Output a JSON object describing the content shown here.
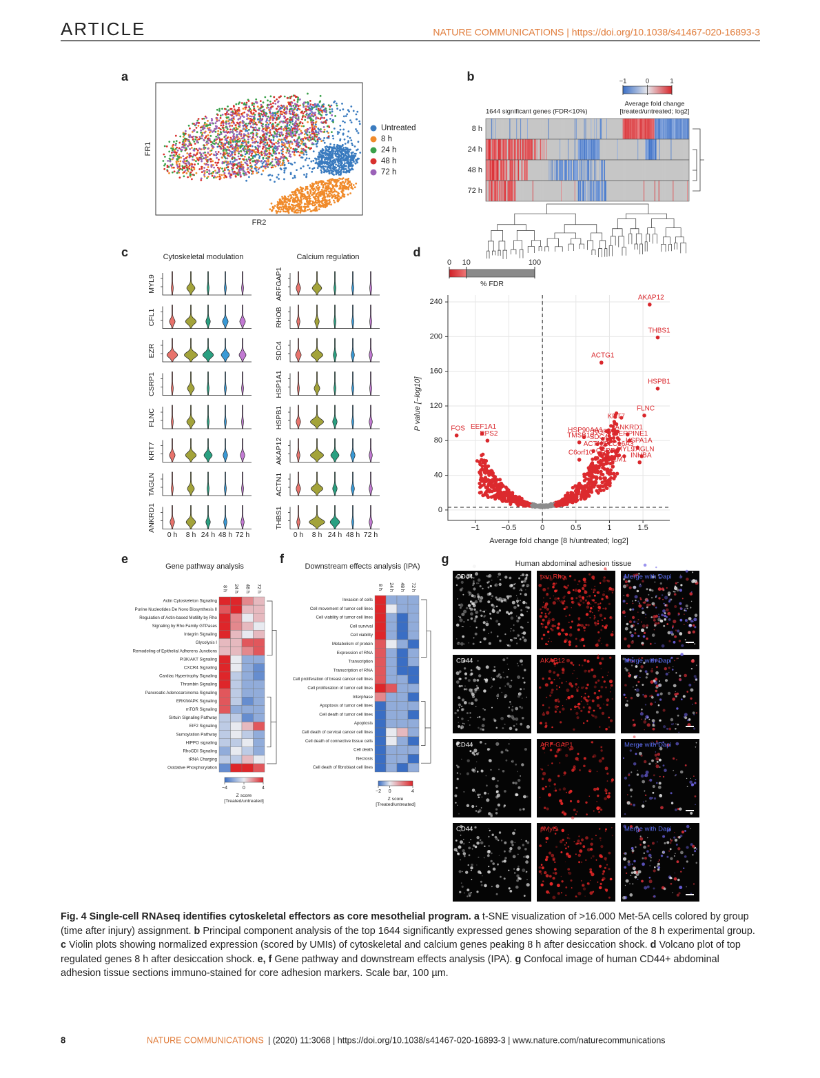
{
  "header": {
    "left": "ARTICLE",
    "right": "NATURE COMMUNICATIONS | https://doi.org/10.1038/s41467-020-16893-3"
  },
  "panels": {
    "a": {
      "label": "a",
      "x_label": "FR2",
      "y_label": "FR1",
      "legend": [
        {
          "name": "Untreated",
          "color": "#3a7bbf"
        },
        {
          "name": "8 h",
          "color": "#f08a2a"
        },
        {
          "name": "24 h",
          "color": "#3aa04a"
        },
        {
          "name": "48 h",
          "color": "#d8312e"
        },
        {
          "name": "72 h",
          "color": "#9b62b8"
        }
      ]
    },
    "b": {
      "label": "b",
      "colorbar_ticks": [
        {
          "value": -1,
          "label": "−1"
        },
        0,
        1
      ],
      "colorbar_title": [
        "Average fold change",
        "[treated/untreated; log2]"
      ],
      "note": "1644 significant genes (FDR<10%)",
      "rows": [
        "8 h",
        "24 h",
        "48 h",
        "72 h"
      ]
    },
    "c": {
      "label": "c",
      "left_title": "Cytoskeletal modulation",
      "right_title": "Calcium regulation",
      "left_genes": [
        "MYL9",
        "CFL1",
        "EZR",
        "CSRP1",
        "FLNC",
        "KRT7",
        "TAGLN",
        "ANKRD1"
      ],
      "right_genes": [
        "ARFGAP1",
        "RHOB",
        "SDC4",
        "HSP1A1",
        "HSPB1",
        "AKAP12",
        "ACTN1",
        "THBS1"
      ],
      "x_labels": [
        "0 h",
        "8 h",
        "24 h",
        "48 h",
        "72 h"
      ]
    },
    "d": {
      "label": "d",
      "fdr_ticks": [
        0,
        10,
        100
      ],
      "fdr_label": "% FDR",
      "x_label": "Average fold change [8 h/untreated; log2]",
      "y_label": "P value [−log10]",
      "xlim": [
        -1.41,
        1.9
      ],
      "ylim": [
        -12,
        248
      ],
      "xticks": [
        {
          "value": -1,
          "label": "−1"
        },
        {
          "value": -0.5,
          "label": "−0.5"
        },
        0,
        0.5,
        1,
        1.5
      ],
      "yticks": [
        0,
        40,
        80,
        120,
        160,
        200,
        240
      ],
      "genes": [
        {
          "name": "AKAP12",
          "x": 1.6,
          "y": 237
        },
        {
          "name": "THBS1",
          "x": 1.72,
          "y": 199
        },
        {
          "name": "ACTG1",
          "x": 0.88,
          "y": 170
        },
        {
          "name": "HSPB1",
          "x": 1.72,
          "y": 140
        },
        {
          "name": "FLNC",
          "x": 1.52,
          "y": 109
        },
        {
          "name": "KRT7",
          "x": 1.08,
          "y": 100
        },
        {
          "name": "FOS",
          "x": -1.28,
          "y": 86
        },
        {
          "name": "EEF1A1",
          "x": -0.9,
          "y": 88
        },
        {
          "name": "RPS2",
          "x": -0.82,
          "y": 80
        },
        {
          "name": "HSP90AA1",
          "x": 0.62,
          "y": 84
        },
        {
          "name": "NOP56",
          "x": 0.9,
          "y": 82
        },
        {
          "name": "TMSB10",
          "x": 0.55,
          "y": 78
        },
        {
          "name": "SDC4",
          "x": 0.82,
          "y": 76
        },
        {
          "name": "SERPINE1",
          "x": 1.3,
          "y": 80
        },
        {
          "name": "ANKRD1",
          "x": 1.27,
          "y": 87
        },
        {
          "name": "HSPA1A",
          "x": 1.42,
          "y": 72
        },
        {
          "name": "ACTN1",
          "x": 0.76,
          "y": 68
        },
        {
          "name": "SLC16A3",
          "x": 1.12,
          "y": 68
        },
        {
          "name": "CSRP1",
          "x": 0.95,
          "y": 60
        },
        {
          "name": "MYL9",
          "x": 1.22,
          "y": 62
        },
        {
          "name": "TAGLN",
          "x": 1.48,
          "y": 62
        },
        {
          "name": "C6orf10",
          "x": 0.55,
          "y": 58
        },
        {
          "name": "GREM1",
          "x": 1.05,
          "y": 50
        },
        {
          "name": "INHBA",
          "x": 1.45,
          "y": 55
        }
      ]
    },
    "e": {
      "label": "e",
      "title": "Gene pathway analysis",
      "columns": [
        "8 h",
        "24 h",
        "48 h",
        "72 h"
      ],
      "rows": [
        "Actin Cytoskeleton Signaling",
        "Purine Nucleotides De Novo Biosynthesis II",
        "Regulation of Actin-based Motility by Rho",
        "Signaling by Rho Family GTPases",
        "Integrin Signaling",
        "Glycolysis I",
        "Remodeling of Epithelial Adherens Junctions",
        "PI3K/AKT Signaling",
        "CXCR4 Signaling",
        "Cardiac Hypertrophy Signaling",
        "Thrombin Signaling",
        "Pancreatic Adenocarcinoma Signaling",
        "ERK/MAPK Signaling",
        "mTOR Signaling",
        "Sirtuin Signaling Pathway",
        "EIF2 Signaling",
        "Sumoylation Pathway",
        "HIPPO signaling",
        "RhoGDI Signaling",
        "tRNA Charging",
        "Oxidative Phosphorylation"
      ],
      "values": [
        [
          4,
          4,
          2,
          1
        ],
        [
          3,
          4,
          1,
          1
        ],
        [
          4,
          2,
          0,
          1
        ],
        [
          4,
          2,
          1,
          0
        ],
        [
          4,
          1,
          0,
          1
        ],
        [
          1,
          1,
          3,
          3
        ],
        [
          1,
          1,
          2,
          3
        ],
        [
          4,
          0,
          -2,
          -2
        ],
        [
          4,
          0,
          -2,
          -3
        ],
        [
          4,
          -1,
          -2,
          -3
        ],
        [
          4,
          -1,
          -2,
          -2
        ],
        [
          3,
          -1,
          -2,
          -2
        ],
        [
          3,
          -1,
          -3,
          -2
        ],
        [
          3,
          -2,
          -2,
          -2
        ],
        [
          -1,
          -1,
          -3,
          -2
        ],
        [
          -1,
          0,
          1,
          3
        ],
        [
          -1,
          0,
          -1,
          -2
        ],
        [
          -1,
          -1,
          0,
          -2
        ],
        [
          -2,
          0,
          -1,
          -2
        ],
        [
          -1,
          -1,
          1,
          0
        ],
        [
          -3,
          4,
          4,
          3
        ]
      ],
      "colorbar_ticks": [
        {
          "value": -4,
          "label": "−4"
        },
        0,
        4
      ],
      "colorbar_title": [
        "Z score",
        "[Treated/untreated]"
      ]
    },
    "f": {
      "label": "f",
      "title": "Downstream effects analysis (IPA)",
      "columns": [
        "8 h",
        "24 h",
        "48 h",
        "72 h"
      ],
      "rows": [
        "Invasion of cells",
        "Cell movement of tumor cell lines",
        "Cell viability of tumor cell lines",
        "Cell survival",
        "Cell viability",
        "Metabolism of protein",
        "Expression of RNA",
        "Transcription",
        "Transcription of RNA",
        "Cell proliferation of breast cancer cell lines",
        "Cell proliferation of tumor cell lines",
        "Interphase",
        "Apoptosis of tumor cell lines",
        "Cell death of tumor cell lines",
        "Apoptosis",
        "Cell death of cervical cancer cell lines",
        "Cell death of connective tissue cells",
        "Cell death",
        "Necrosis",
        "Cell death of fibroblast cell lines"
      ],
      "values": [
        [
          4,
          -1,
          -1,
          -1
        ],
        [
          4,
          0,
          -1,
          -1
        ],
        [
          4,
          -1,
          -2,
          -1
        ],
        [
          4,
          -1,
          -2,
          -1
        ],
        [
          4,
          -1,
          -2,
          -1
        ],
        [
          3,
          0,
          -1,
          -2
        ],
        [
          3,
          -1,
          -2,
          -1
        ],
        [
          3,
          -1,
          -2,
          -1
        ],
        [
          3,
          -1,
          -2,
          -2
        ],
        [
          3,
          -1,
          -1,
          -2
        ],
        [
          4,
          3,
          -1,
          -1
        ],
        [
          2,
          -1,
          -1,
          -2
        ],
        [
          -2,
          -1,
          -1,
          -1
        ],
        [
          -2,
          -1,
          -1,
          -2
        ],
        [
          -2,
          -1,
          -1,
          -1
        ],
        [
          -2,
          0,
          1,
          -1
        ],
        [
          -2,
          0,
          -1,
          -2
        ],
        [
          -2,
          -1,
          -1,
          -1
        ],
        [
          -2,
          -1,
          -1,
          -2
        ],
        [
          -2,
          -1,
          -2,
          -1
        ]
      ],
      "colorbar_ticks": [
        {
          "value": -2,
          "label": "−2"
        },
        0,
        4
      ],
      "colorbar_title": [
        "Z score",
        "[Treated/untreated]"
      ]
    },
    "g": {
      "label": "g",
      "title": "Human abdominal adhesion tissue",
      "tiles": [
        [
          "CD44",
          "pan Rho",
          "Merge with Dapi"
        ],
        [
          "CD44",
          "AKAP12",
          "Merge with Dapi"
        ],
        [
          "CD44",
          "ARF-GAP1",
          "Merge with Dapi"
        ],
        [
          "CD44",
          "pMyl9",
          "Merge with Dapi"
        ]
      ]
    }
  },
  "caption": {
    "title": "Fig. 4 Single-cell RNAseq identifies cytoskeletal effectors as core mesothelial program.",
    "a": "a",
    "a_text": "t-SNE visualization of >16.000 Met-5A cells colored by group (time after injury) assignment.",
    "b": "b",
    "b_text": "Principal component analysis of the top 1644 significantly expressed genes showing separation of the 8 h experimental group.",
    "c": "c",
    "c_text": "Violin plots showing normalized expression (scored by UMIs) of cytoskeletal and calcium genes peaking 8 h after desiccation shock.",
    "d": "d",
    "d_text": "Volcano plot of top regulated genes 8 h after desiccation shock.",
    "ef": "e, f",
    "ef_text": "Gene pathway and downstream effects analysis (IPA).",
    "g": "g",
    "g_text": "Confocal image of human CD44+ abdominal adhesion tissue sections immuno-stained for core adhesion markers. Scale bar, 100 µm."
  },
  "footer": {
    "page": "8",
    "journal": "NATURE COMMUNICATIONS",
    "rest": "| (2020) 11:3068 | https://doi.org/10.1038/s41467-020-16893-3 | www.nature.com/naturecommunications"
  }
}
